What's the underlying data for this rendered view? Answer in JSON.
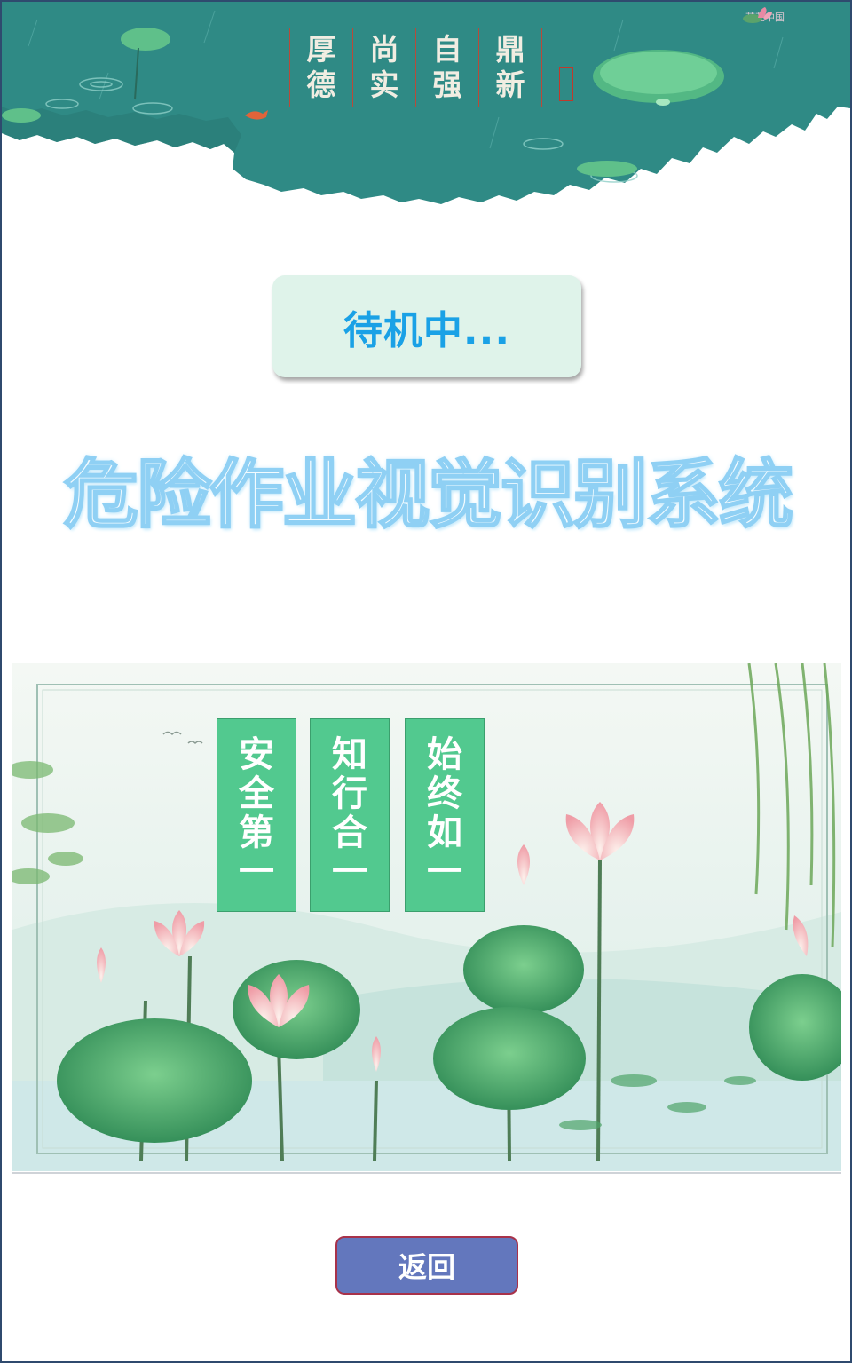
{
  "header": {
    "motto": [
      {
        "top": "厚",
        "bottom": "德"
      },
      {
        "top": "尚",
        "bottom": "实"
      },
      {
        "top": "自",
        "bottom": "强"
      },
      {
        "top": "鼎",
        "bottom": "新"
      }
    ],
    "logo_text": "荷花中国"
  },
  "status": {
    "text": "待机中..."
  },
  "title": "危险作业视觉识别系统",
  "slogans": [
    {
      "chars": [
        "安",
        "全",
        "第",
        "一"
      ]
    },
    {
      "chars": [
        "知",
        "行",
        "合",
        "一"
      ]
    },
    {
      "chars": [
        "始",
        "终",
        "如",
        "一"
      ]
    }
  ],
  "back_button": {
    "label": "返回"
  },
  "colors": {
    "banner": "#2f8a85",
    "status_text": "#1aa1e6",
    "status_bg": "#dff3ea",
    "slogan_bg": "#52c98f",
    "button_bg": "#6377bd",
    "button_border": "#a8324a"
  }
}
